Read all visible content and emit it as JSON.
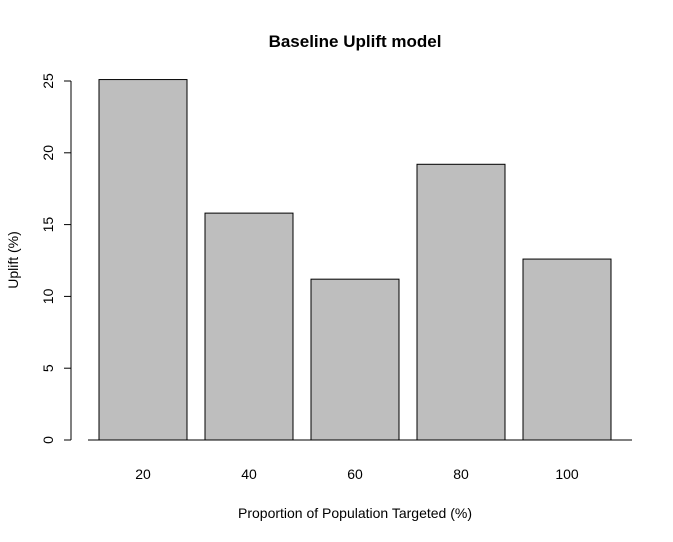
{
  "chart_data": {
    "type": "bar",
    "title": "Baseline Uplift model",
    "xlabel": "Proportion of Population Targeted (%)",
    "ylabel": "Uplift (%)",
    "categories": [
      "20",
      "40",
      "60",
      "80",
      "100"
    ],
    "values": [
      25.1,
      15.8,
      11.2,
      19.2,
      12.6
    ],
    "ylim": [
      0,
      25
    ],
    "yticks": [
      "0",
      "5",
      "10",
      "15",
      "20",
      "25"
    ],
    "grid": false,
    "bar_color": "#bebebe",
    "border_color": "#000000"
  }
}
